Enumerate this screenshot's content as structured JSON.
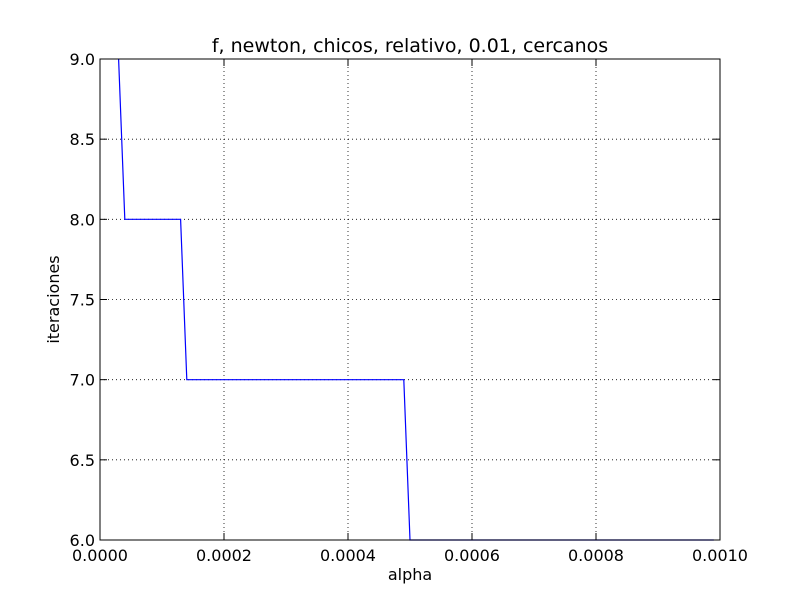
{
  "chart_data": {
    "type": "line",
    "title": "f, newton, chicos, relativo, 0.01, cercanos",
    "xlabel": "alpha",
    "ylabel": "iteraciones",
    "xlim": [
      0.0,
      0.001
    ],
    "ylim": [
      6.0,
      9.0
    ],
    "grid": true,
    "line_color": "#0000ff",
    "x_ticks": [
      0.0,
      0.0002,
      0.0004,
      0.0006,
      0.0008,
      0.001
    ],
    "x_tick_labels": [
      "0.0000",
      "0.0002",
      "0.0004",
      "0.0006",
      "0.0008",
      "0.0010"
    ],
    "y_ticks": [
      6.0,
      6.5,
      7.0,
      7.5,
      8.0,
      8.5,
      9.0
    ],
    "y_tick_labels": [
      "6.0",
      "6.5",
      "7.0",
      "7.5",
      "8.0",
      "8.5",
      "9.0"
    ],
    "series": [
      {
        "x": [
          3e-05,
          4e-05,
          0.00013,
          0.00014,
          0.00049,
          0.0005,
          0.00099
        ],
        "y": [
          9.0,
          8.0,
          8.0,
          7.0,
          7.0,
          6.0,
          6.0
        ]
      }
    ]
  }
}
